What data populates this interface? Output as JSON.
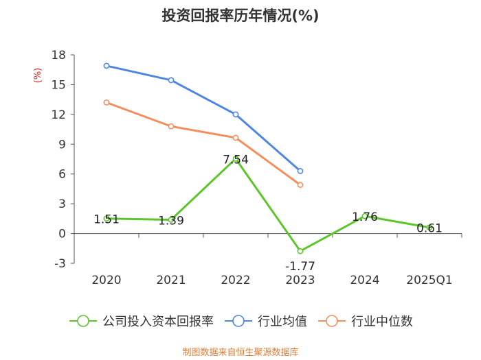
{
  "chart_data": {
    "type": "line",
    "title": "投资回报率历年情况(%)",
    "ylabel": "(%)",
    "xlabel": "",
    "ylim": [
      -3,
      18
    ],
    "yticks": [
      -3,
      0,
      3,
      6,
      9,
      12,
      15,
      18
    ],
    "categories": [
      "2020",
      "2021",
      "2022",
      "2023",
      "2024",
      "2025Q1"
    ],
    "series": [
      {
        "name": "公司投入资本回报率",
        "color": "#5cc52a",
        "values": [
          1.51,
          1.39,
          7.54,
          -1.77,
          1.76,
          0.61
        ],
        "labels": [
          "1.51",
          "1.39",
          "7.54",
          "-1.77",
          "1.76",
          "0.61"
        ],
        "show_labels": true
      },
      {
        "name": "行业均值",
        "color": "#4f86e4",
        "values": [
          16.9,
          15.45,
          12.0,
          6.3,
          null,
          null
        ],
        "show_labels": false
      },
      {
        "name": "行业中位数",
        "color": "#f58e5a",
        "values": [
          13.2,
          10.8,
          9.65,
          4.9,
          null,
          null
        ],
        "show_labels": false
      }
    ],
    "legend_position": "bottom",
    "grid": false
  },
  "footer": {
    "source": "制图数据来自恒生聚源数据库"
  }
}
